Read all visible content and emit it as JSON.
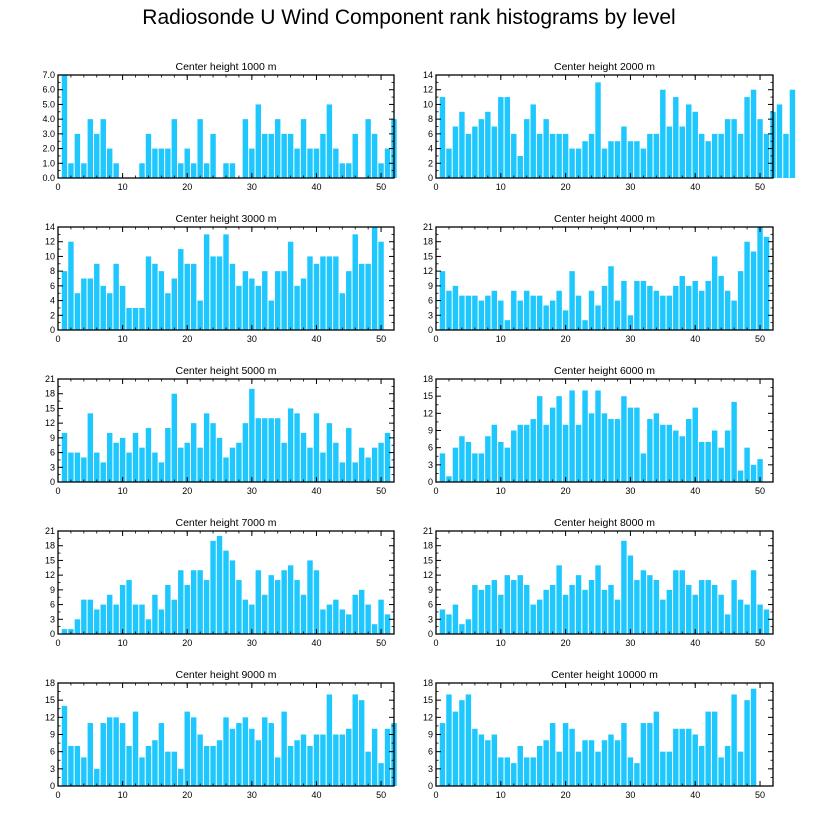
{
  "figure": {
    "title": "Radiosonde U Wind Component rank histograms by level",
    "bar_color": "#1EC8FF",
    "axis_color": "#000000"
  },
  "chart_data": [
    {
      "type": "bar",
      "title": "Center height 1000 m",
      "xlabel": "",
      "ylabel": "",
      "xlim": [
        0,
        52
      ],
      "ylim": [
        0,
        7
      ],
      "x_ticks": [
        0,
        10,
        20,
        30,
        40,
        50
      ],
      "y_ticks": [
        "0.0",
        "1.0",
        "2.0",
        "3.0",
        "4.0",
        "5.0",
        "6.0",
        "7.0"
      ],
      "values": [
        7,
        1,
        3,
        1,
        4,
        3,
        4,
        2,
        1,
        0,
        0,
        0,
        1,
        3,
        2,
        2,
        2,
        4,
        1,
        2,
        1,
        4,
        1,
        3,
        0,
        1,
        1,
        0,
        4,
        2,
        5,
        3,
        3,
        4,
        3,
        3,
        2,
        4,
        2,
        2,
        3,
        5,
        2,
        1,
        1,
        3,
        0,
        4,
        3,
        1,
        2,
        4
      ]
    },
    {
      "type": "bar",
      "title": "Center height 2000 m",
      "xlabel": "",
      "ylabel": "",
      "xlim": [
        0,
        52
      ],
      "ylim": [
        0,
        14
      ],
      "x_ticks": [
        0,
        10,
        20,
        30,
        40,
        50
      ],
      "y_ticks": [
        "0",
        "2",
        "4",
        "6",
        "8",
        "10",
        "12",
        "14"
      ],
      "values": [
        11,
        4,
        7,
        9,
        6,
        7,
        8,
        9,
        7,
        11,
        11,
        6,
        3,
        8,
        10,
        6,
        8,
        6,
        6,
        6,
        4,
        4,
        5,
        6,
        13,
        4,
        5,
        5,
        7,
        5,
        5,
        4,
        6,
        6,
        12,
        7,
        11,
        7,
        10,
        9,
        6,
        5,
        6,
        6,
        8,
        8,
        6,
        11,
        12,
        8,
        6,
        9,
        10,
        6,
        12
      ]
    },
    {
      "type": "bar",
      "title": "Center height 3000 m",
      "xlabel": "",
      "ylabel": "",
      "xlim": [
        0,
        52
      ],
      "ylim": [
        0,
        14
      ],
      "x_ticks": [
        0,
        10,
        20,
        30,
        40,
        50
      ],
      "y_ticks": [
        "0",
        "2",
        "4",
        "6",
        "8",
        "10",
        "12",
        "14"
      ],
      "values": [
        8,
        12,
        5,
        7,
        7,
        9,
        6,
        5,
        9,
        6,
        3,
        3,
        3,
        10,
        9,
        8,
        5,
        7,
        11,
        9,
        9,
        4,
        13,
        10,
        10,
        13,
        9,
        6,
        8,
        7,
        6,
        8,
        4,
        8,
        8,
        12,
        6,
        7,
        10,
        9,
        10,
        10,
        10,
        5,
        8,
        13,
        9,
        9,
        14,
        12
      ]
    },
    {
      "type": "bar",
      "title": "Center height 4000 m",
      "xlabel": "",
      "ylabel": "",
      "xlim": [
        0,
        52
      ],
      "ylim": [
        0,
        21
      ],
      "x_ticks": [
        0,
        10,
        20,
        30,
        40,
        50
      ],
      "y_ticks": [
        "0",
        "3",
        "6",
        "9",
        "12",
        "15",
        "18",
        "21"
      ],
      "values": [
        12,
        8,
        9,
        7,
        7,
        7,
        6,
        7,
        8,
        6,
        2,
        8,
        6,
        8,
        7,
        7,
        5,
        6,
        8,
        4,
        12,
        7,
        2,
        8,
        5,
        9,
        13,
        6,
        10,
        3,
        10,
        10,
        9,
        8,
        7,
        7,
        9,
        11,
        9,
        10,
        8,
        10,
        15,
        11,
        8,
        6,
        12,
        18,
        16,
        21,
        19
      ]
    },
    {
      "type": "bar",
      "title": "Center height 5000 m",
      "xlabel": "",
      "ylabel": "",
      "xlim": [
        0,
        52
      ],
      "ylim": [
        0,
        21
      ],
      "x_ticks": [
        0,
        10,
        20,
        30,
        40,
        50
      ],
      "y_ticks": [
        "0",
        "3",
        "6",
        "9",
        "12",
        "15",
        "18",
        "21"
      ],
      "values": [
        10,
        6,
        6,
        5,
        14,
        6,
        4,
        10,
        8,
        9,
        6,
        10,
        7,
        11,
        6,
        4,
        11,
        18,
        7,
        8,
        12,
        7,
        14,
        12,
        9,
        5,
        7,
        8,
        12,
        19,
        13,
        13,
        13,
        13,
        8,
        15,
        14,
        10,
        7,
        14,
        6,
        12,
        8,
        4,
        11,
        4,
        7,
        5,
        7,
        8,
        10
      ]
    },
    {
      "type": "bar",
      "title": "Center height 6000 m",
      "xlabel": "",
      "ylabel": "",
      "xlim": [
        0,
        52
      ],
      "ylim": [
        0,
        18
      ],
      "x_ticks": [
        0,
        10,
        20,
        30,
        40,
        50
      ],
      "y_ticks": [
        "0",
        "3",
        "6",
        "9",
        "12",
        "15",
        "18"
      ],
      "values": [
        5,
        1,
        6,
        8,
        7,
        5,
        5,
        8,
        10,
        7,
        6,
        9,
        10,
        10,
        11,
        15,
        10,
        13,
        15,
        10,
        16,
        10,
        16,
        12,
        16,
        12,
        11,
        11,
        15,
        13,
        13,
        5,
        11,
        12,
        10,
        10,
        9,
        8,
        11,
        13,
        7,
        7,
        9,
        6,
        9,
        14,
        2,
        6,
        3,
        4
      ]
    },
    {
      "type": "bar",
      "title": "Center height 7000 m",
      "xlabel": "",
      "ylabel": "",
      "xlim": [
        0,
        52
      ],
      "ylim": [
        0,
        21
      ],
      "x_ticks": [
        0,
        10,
        20,
        30,
        40,
        50
      ],
      "y_ticks": [
        "0",
        "3",
        "6",
        "9",
        "12",
        "15",
        "18",
        "21"
      ],
      "values": [
        1,
        1,
        3,
        7,
        7,
        5,
        6,
        8,
        6,
        10,
        11,
        6,
        6,
        3,
        8,
        5,
        10,
        7,
        13,
        10,
        13,
        13,
        11,
        19,
        20,
        17,
        15,
        11,
        7,
        6,
        13,
        8,
        12,
        11,
        13,
        14,
        11,
        8,
        15,
        13,
        5,
        6,
        7,
        5,
        4,
        8,
        9,
        6,
        2,
        7,
        4
      ]
    },
    {
      "type": "bar",
      "title": "Center height 8000 m",
      "xlabel": "",
      "ylabel": "",
      "xlim": [
        0,
        52
      ],
      "ylim": [
        0,
        21
      ],
      "x_ticks": [
        0,
        10,
        20,
        30,
        40,
        50
      ],
      "y_ticks": [
        "0",
        "3",
        "6",
        "9",
        "12",
        "15",
        "18",
        "21"
      ],
      "values": [
        5,
        4,
        6,
        2,
        3,
        10,
        9,
        10,
        11,
        8,
        12,
        11,
        12,
        10,
        6,
        7,
        9,
        10,
        14,
        8,
        10,
        12,
        9,
        11,
        14,
        9,
        10,
        7,
        19,
        16,
        11,
        13,
        12,
        11,
        7,
        9,
        13,
        13,
        10,
        8,
        11,
        11,
        10,
        8,
        4,
        11,
        7,
        6,
        13,
        6,
        5
      ]
    },
    {
      "type": "bar",
      "title": "Center height 9000 m",
      "xlabel": "",
      "ylabel": "",
      "xlim": [
        0,
        52
      ],
      "ylim": [
        0,
        18
      ],
      "x_ticks": [
        0,
        10,
        20,
        30,
        40,
        50
      ],
      "y_ticks": [
        "0",
        "3",
        "6",
        "9",
        "12",
        "15",
        "18"
      ],
      "values": [
        14,
        7,
        7,
        5,
        11,
        3,
        11,
        12,
        12,
        11,
        7,
        13,
        5,
        7,
        8,
        11,
        6,
        6,
        3,
        13,
        12,
        9,
        7,
        7,
        8,
        12,
        10,
        11,
        12,
        10,
        8,
        12,
        11,
        5,
        13,
        7,
        8,
        9,
        7,
        9,
        9,
        16,
        9,
        9,
        10,
        16,
        15,
        6,
        10,
        4,
        10,
        11
      ]
    },
    {
      "type": "bar",
      "title": "Center height 10000 m",
      "xlabel": "",
      "ylabel": "",
      "xlim": [
        0,
        52
      ],
      "ylim": [
        0,
        18
      ],
      "x_ticks": [
        0,
        10,
        20,
        30,
        40,
        50
      ],
      "y_ticks": [
        "0",
        "3",
        "6",
        "9",
        "12",
        "15",
        "18"
      ],
      "values": [
        11,
        16,
        13,
        15,
        16,
        10,
        9,
        8,
        9,
        5,
        5,
        4,
        7,
        5,
        5,
        7,
        8,
        11,
        6,
        11,
        10,
        6,
        8,
        8,
        6,
        8,
        9,
        8,
        11,
        5,
        4,
        11,
        11,
        13,
        6,
        6,
        10,
        10,
        10,
        9,
        7,
        13,
        13,
        5,
        7,
        16,
        6,
        15,
        17
      ]
    }
  ]
}
